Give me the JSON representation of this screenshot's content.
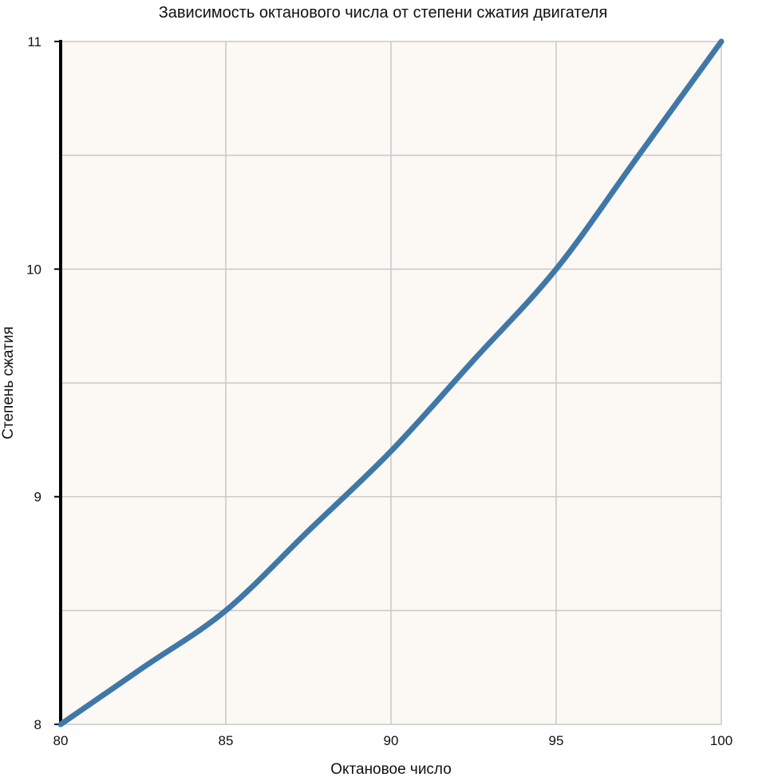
{
  "chart_data": {
    "type": "line",
    "title": "Зависимость октанового числа от степени сжатия двигателя",
    "xlabel": "Октановое число",
    "ylabel": "Степень сжатия",
    "xlim": [
      80,
      100
    ],
    "ylim": [
      8,
      11
    ],
    "x_ticks": [
      "80",
      "85",
      "90",
      "95",
      "100"
    ],
    "y_ticks": [
      "8",
      "9",
      "10",
      "11"
    ],
    "grid": true,
    "legend": "none",
    "series": [
      {
        "x": [
          80,
          82.5,
          85,
          87.5,
          90,
          92.5,
          95,
          97.5,
          100
        ],
        "y": [
          8.0,
          8.25,
          8.5,
          8.85,
          9.2,
          9.6,
          10.0,
          10.5,
          11.0
        ],
        "color": "#3f78a8"
      }
    ],
    "colors": {
      "plot_background": "#fcf8f3",
      "grid": "#c8c8c8",
      "axis": "#000000",
      "line": "#3f78a8"
    }
  }
}
